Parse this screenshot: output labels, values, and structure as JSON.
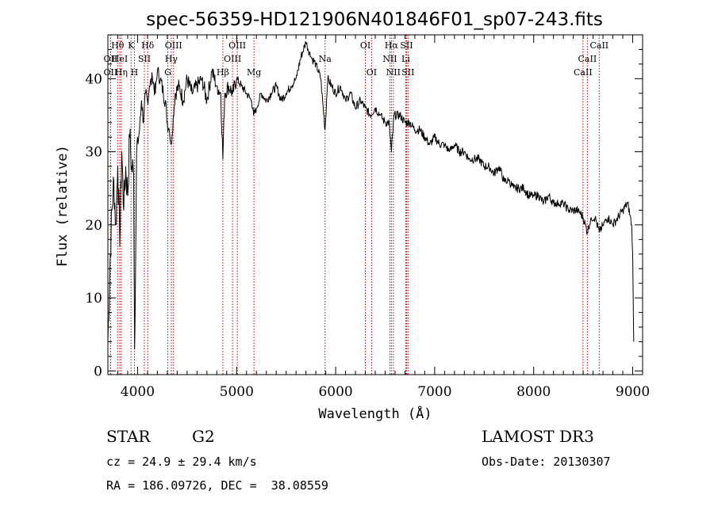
{
  "chart_data": {
    "type": "line",
    "title": "spec-56359-HD121906N401846F01_sp07-243.fits",
    "xlabel": "Wavelength (Å)",
    "ylabel": "Flux (relative)",
    "xlim": [
      3700,
      9100
    ],
    "ylim": [
      -0.5,
      46
    ],
    "x_ticks": [
      4000,
      5000,
      6000,
      7000,
      8000,
      9000
    ],
    "y_ticks": [
      0,
      10,
      20,
      30,
      40
    ],
    "grid": false,
    "line_color": "#000000",
    "marker_color": "#cc0000",
    "series": [
      {
        "name": "spectrum",
        "points": [
          [
            3700,
            4
          ],
          [
            3720,
            14
          ],
          [
            3740,
            22
          ],
          [
            3760,
            26
          ],
          [
            3780,
            20
          ],
          [
            3800,
            28
          ],
          [
            3820,
            17
          ],
          [
            3840,
            30
          ],
          [
            3860,
            22
          ],
          [
            3880,
            28
          ],
          [
            3900,
            24
          ],
          [
            3920,
            32
          ],
          [
            3940,
            28
          ],
          [
            3960,
            27
          ],
          [
            3970,
            3
          ],
          [
            3990,
            30
          ],
          [
            4020,
            33
          ],
          [
            4040,
            37
          ],
          [
            4060,
            34
          ],
          [
            4080,
            38
          ],
          [
            4100,
            37
          ],
          [
            4120,
            39
          ],
          [
            4150,
            40
          ],
          [
            4180,
            38
          ],
          [
            4200,
            41
          ],
          [
            4230,
            40
          ],
          [
            4260,
            38
          ],
          [
            4280,
            37
          ],
          [
            4300,
            34
          ],
          [
            4320,
            33
          ],
          [
            4340,
            31
          ],
          [
            4360,
            35
          ],
          [
            4380,
            38
          ],
          [
            4420,
            39
          ],
          [
            4460,
            37
          ],
          [
            4500,
            40
          ],
          [
            4550,
            38
          ],
          [
            4600,
            39
          ],
          [
            4650,
            40
          ],
          [
            4700,
            37
          ],
          [
            4750,
            41
          ],
          [
            4800,
            39
          ],
          [
            4840,
            38
          ],
          [
            4861,
            29
          ],
          [
            4880,
            38
          ],
          [
            4920,
            39
          ],
          [
            4960,
            38
          ],
          [
            5000,
            40
          ],
          [
            5050,
            39
          ],
          [
            5100,
            38
          ],
          [
            5150,
            37
          ],
          [
            5172,
            35
          ],
          [
            5200,
            36
          ],
          [
            5250,
            38
          ],
          [
            5300,
            37
          ],
          [
            5350,
            38
          ],
          [
            5400,
            39
          ],
          [
            5450,
            37
          ],
          [
            5500,
            38
          ],
          [
            5550,
            39
          ],
          [
            5600,
            40
          ],
          [
            5650,
            43
          ],
          [
            5700,
            45
          ],
          [
            5750,
            43
          ],
          [
            5800,
            42
          ],
          [
            5850,
            40
          ],
          [
            5893,
            33
          ],
          [
            5920,
            40
          ],
          [
            5960,
            39
          ],
          [
            6000,
            38
          ],
          [
            6050,
            39
          ],
          [
            6100,
            37
          ],
          [
            6150,
            38
          ],
          [
            6200,
            36
          ],
          [
            6250,
            37
          ],
          [
            6300,
            36
          ],
          [
            6350,
            35
          ],
          [
            6400,
            36
          ],
          [
            6450,
            35
          ],
          [
            6500,
            34
          ],
          [
            6540,
            34
          ],
          [
            6563,
            30
          ],
          [
            6590,
            35
          ],
          [
            6650,
            35
          ],
          [
            6700,
            34
          ],
          [
            6750,
            34
          ],
          [
            6800,
            33
          ],
          [
            6850,
            33
          ],
          [
            6900,
            32
          ],
          [
            6950,
            31
          ],
          [
            7000,
            32
          ],
          [
            7050,
            31
          ],
          [
            7100,
            31
          ],
          [
            7150,
            30
          ],
          [
            7200,
            31
          ],
          [
            7250,
            30
          ],
          [
            7300,
            30
          ],
          [
            7350,
            29
          ],
          [
            7400,
            29
          ],
          [
            7450,
            29
          ],
          [
            7500,
            28
          ],
          [
            7550,
            28
          ],
          [
            7600,
            27
          ],
          [
            7650,
            28
          ],
          [
            7700,
            26
          ],
          [
            7750,
            26
          ],
          [
            7800,
            25
          ],
          [
            7850,
            25
          ],
          [
            7900,
            25
          ],
          [
            7950,
            24
          ],
          [
            8000,
            24
          ],
          [
            8050,
            24
          ],
          [
            8100,
            23
          ],
          [
            8150,
            24
          ],
          [
            8200,
            23
          ],
          [
            8250,
            23
          ],
          [
            8300,
            23
          ],
          [
            8350,
            22
          ],
          [
            8400,
            22
          ],
          [
            8450,
            22
          ],
          [
            8500,
            21
          ],
          [
            8542,
            19
          ],
          [
            8580,
            21
          ],
          [
            8620,
            21
          ],
          [
            8662,
            19
          ],
          [
            8700,
            20
          ],
          [
            8750,
            21
          ],
          [
            8800,
            20
          ],
          [
            8850,
            21
          ],
          [
            8900,
            22
          ],
          [
            8950,
            23
          ],
          [
            8990,
            20
          ],
          [
            9000,
            16
          ],
          [
            9010,
            4
          ]
        ]
      }
    ],
    "line_markers": [
      {
        "name": "Hθ",
        "wavelength": 3798,
        "row": 1
      },
      {
        "name": "OII",
        "wavelength": 3727,
        "row": 2
      },
      {
        "name": "OII",
        "wavelength": 3727,
        "row": 3
      },
      {
        "name": "HeI",
        "wavelength": 3820,
        "row": 2
      },
      {
        "name": "Hη",
        "wavelength": 3835,
        "row": 3
      },
      {
        "name": "K",
        "wavelength": 3934,
        "row": 1
      },
      {
        "name": "SII",
        "wavelength": 4068,
        "row": 2
      },
      {
        "name": "H",
        "wavelength": 3968,
        "row": 3
      },
      {
        "name": "Hδ",
        "wavelength": 4102,
        "row": 1
      },
      {
        "name": "OIII",
        "wavelength": 4363,
        "row": 1
      },
      {
        "name": "Hγ",
        "wavelength": 4340,
        "row": 2
      },
      {
        "name": "G",
        "wavelength": 4305,
        "row": 3
      },
      {
        "name": "Hβ",
        "wavelength": 4861,
        "row": 3
      },
      {
        "name": "OIII",
        "wavelength": 5007,
        "row": 1
      },
      {
        "name": "OIII",
        "wavelength": 4959,
        "row": 2
      },
      {
        "name": "Mg",
        "wavelength": 5175,
        "row": 3
      },
      {
        "name": "Na",
        "wavelength": 5893,
        "row": 2
      },
      {
        "name": "OI",
        "wavelength": 6300,
        "row": 1
      },
      {
        "name": "OI",
        "wavelength": 6363,
        "row": 3
      },
      {
        "name": "Hα",
        "wavelength": 6563,
        "row": 1
      },
      {
        "name": "NII",
        "wavelength": 6548,
        "row": 2
      },
      {
        "name": "NII",
        "wavelength": 6583,
        "row": 3
      },
      {
        "name": "SII",
        "wavelength": 6716,
        "row": 1
      },
      {
        "name": "Li",
        "wavelength": 6708,
        "row": 2
      },
      {
        "name": "SII",
        "wavelength": 6731,
        "row": 3
      },
      {
        "name": "CaII",
        "wavelength": 8662,
        "row": 1
      },
      {
        "name": "CaII",
        "wavelength": 8542,
        "row": 2
      },
      {
        "name": "CaII",
        "wavelength": 8498,
        "row": 3
      }
    ]
  },
  "info": {
    "object_class": "STAR",
    "subclass": "G2",
    "survey": "LAMOST DR3",
    "cz": "cz = 24.9 ± 29.4 km/s",
    "obs_date": "Obs-Date: 20130307",
    "coords": "RA = 186.09726, DEC =  38.08559"
  }
}
